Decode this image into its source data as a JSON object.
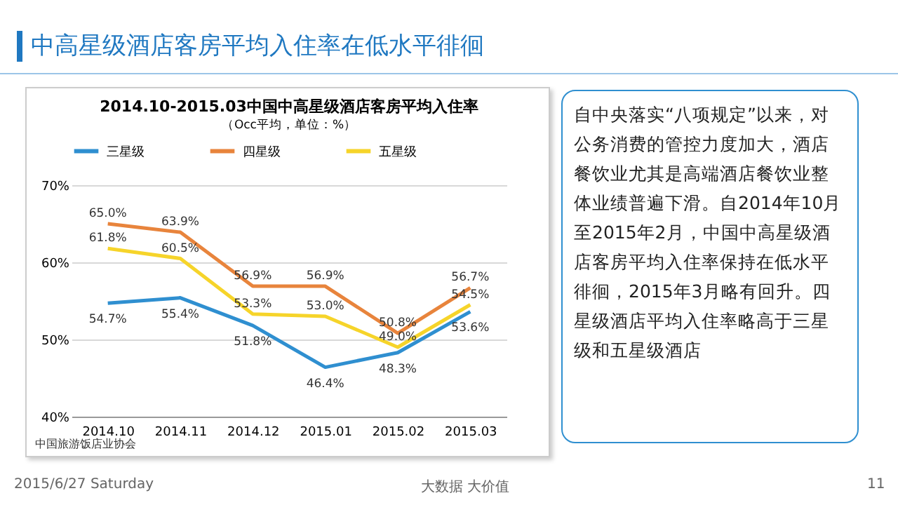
{
  "chart_data": {
    "type": "line",
    "title": "中高星级酒店客房平均入住率在低水平徘徊",
    "subtitle": "2014.10-2015.03中国中高星级酒店客房平均入住率",
    "categories": [
      "2014.10",
      "2014.11",
      "2014.12",
      "2015.01",
      "2015.02",
      "2015.03"
    ],
    "series": [
      {
        "name": "三星级",
        "color": "#2f8fd0",
        "values": [
          54.7,
          55.4,
          51.8,
          46.4,
          48.3,
          53.6
        ],
        "value_labels": [
          "54.7%",
          "55.4%",
          "51.8%",
          "46.4%",
          "48.3%",
          "53.6%"
        ]
      },
      {
        "name": "四星级",
        "color": "#e8843c",
        "values": [
          65.0,
          63.9,
          56.9,
          56.9,
          50.8,
          56.7
        ],
        "value_labels": [
          "65.0%",
          "63.9%",
          "56.9%",
          "56.9%",
          "50.8%",
          "56.7%"
        ]
      },
      {
        "name": "五星级",
        "color": "#f6d42a",
        "values": [
          61.8,
          60.5,
          53.3,
          53.0,
          49.0,
          54.5
        ],
        "value_labels": [
          "61.8%",
          "60.5%",
          "53.3%",
          "53.0%",
          "49.0%",
          "54.5%"
        ]
      }
    ],
    "ylim": [
      40,
      70
    ],
    "yticks": [
      {
        "value": 40,
        "label": "40%"
      },
      {
        "value": 50,
        "label": "50%"
      },
      {
        "value": 60,
        "label": "60%"
      },
      {
        "value": 70,
        "label": "70%"
      }
    ],
    "grid": "y",
    "legend": "top",
    "marker": "none",
    "line_style": "solid",
    "annotations": [
      "（Occ平均，单位：%）",
      "自中央落实“八项规定”以来，对公务消费的管控力度加大，酒店餐饮业尤其是高端酒店餐饮业整体业绩普遍下滑。自2014年10月至2015年2月，中国中高星级酒店客房平均入住率保持在低水平徘徊，2015年3月略有回升。四星级酒店平均入住率略高于三星级和五星级酒店",
      "中国旅游饭店业协会",
      "2015/6/27 Saturday",
      "大数据  大价值",
      "11"
    ]
  }
}
